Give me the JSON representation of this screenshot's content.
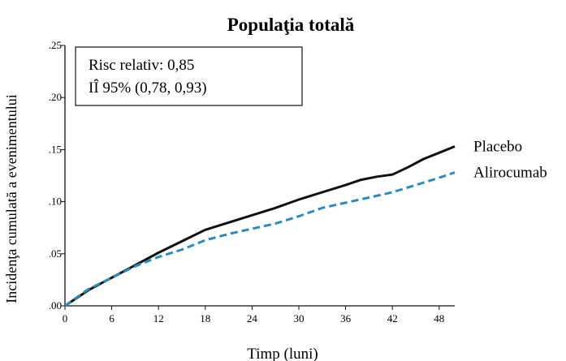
{
  "chart_data": {
    "type": "line",
    "title": "Populaţia totală",
    "xlabel": "Timp (luni)",
    "ylabel": "Incidenţa cumulată a evenimentului",
    "xlim": [
      0,
      50
    ],
    "ylim": [
      0,
      0.25
    ],
    "x_ticks": [
      "0",
      "6",
      "12",
      "18",
      "24",
      "30",
      "36",
      "42",
      "48"
    ],
    "x_tick_values": [
      0,
      6,
      12,
      18,
      24,
      30,
      36,
      42,
      48
    ],
    "y_ticks": [
      ".00",
      ".05",
      ".10",
      ".15",
      ".20",
      ".25"
    ],
    "y_tick_values": [
      0,
      0.05,
      0.1,
      0.15,
      0.2,
      0.25
    ],
    "grid": false,
    "annotation": {
      "line1": "Risc relativ: 0,85",
      "line2": "IÎ 95% (0,78, 0,93)"
    },
    "series": [
      {
        "name": "Placebo",
        "color": "#111111",
        "style": "solid",
        "x": [
          0,
          3,
          6,
          9,
          12,
          15,
          18,
          21,
          24,
          27,
          30,
          33,
          36,
          38,
          40,
          42,
          44,
          46,
          48,
          50
        ],
        "values": [
          0.0,
          0.015,
          0.027,
          0.039,
          0.051,
          0.062,
          0.073,
          0.08,
          0.087,
          0.094,
          0.102,
          0.109,
          0.116,
          0.121,
          0.124,
          0.126,
          0.133,
          0.141,
          0.147,
          0.153
        ]
      },
      {
        "name": "Alirocumab",
        "color": "#2a8bc0",
        "style": "dashed",
        "x": [
          0,
          3,
          6,
          9,
          12,
          15,
          18,
          21,
          24,
          27,
          30,
          33,
          36,
          39,
          42,
          45,
          48,
          50
        ],
        "values": [
          0.0,
          0.016,
          0.027,
          0.038,
          0.047,
          0.054,
          0.063,
          0.069,
          0.074,
          0.079,
          0.086,
          0.094,
          0.099,
          0.104,
          0.109,
          0.116,
          0.123,
          0.128
        ]
      }
    ]
  }
}
